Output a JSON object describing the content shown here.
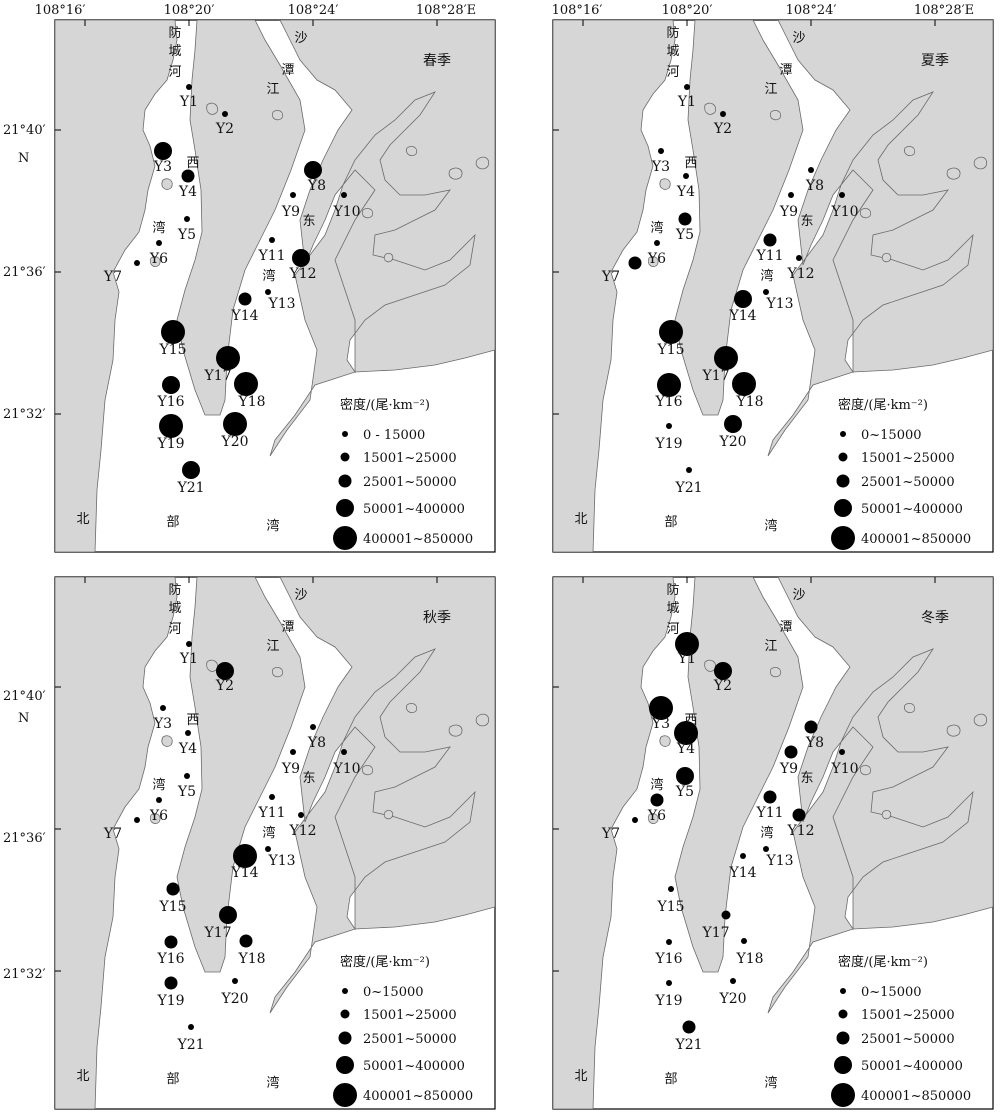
{
  "axes": {
    "top_ticks": [
      "108°16′",
      "108°20′",
      "108°24′",
      "108°28′E"
    ],
    "left_ticks": [
      "21°40′",
      "21°36′",
      "21°32′"
    ],
    "north_label": "N"
  },
  "geo_labels": {
    "fangcheng_river": [
      "防",
      "城",
      "河"
    ],
    "shatan_river": [
      "沙",
      "潭",
      "江"
    ],
    "west_bay": [
      "西",
      "湾"
    ],
    "east_bay": [
      "东",
      "湾"
    ],
    "beibu_gulf": [
      "北",
      "部",
      "湾"
    ]
  },
  "legend": {
    "title": "密度/(尾·km⁻²)",
    "classes_spring": [
      "0 - 15000",
      "15001~25000",
      "25001~50000",
      "50001~400000",
      "400001~850000"
    ],
    "classes_other": [
      "0~15000",
      "15001~25000",
      "25001~50000",
      "50001~400000",
      "400001~850000"
    ]
  },
  "stations": [
    "Y1",
    "Y2",
    "Y3",
    "Y4",
    "Y5",
    "Y6",
    "Y7",
    "Y8",
    "Y9",
    "Y10",
    "Y11",
    "Y12",
    "Y13",
    "Y14",
    "Y15",
    "Y16",
    "Y17",
    "Y18",
    "Y19",
    "Y20",
    "Y21"
  ],
  "chart_data": {
    "type": "bubble-map",
    "unit": "尾·km⁻²",
    "density_classes": [
      "0~15000",
      "15001~25000",
      "25001~50000",
      "50001~400000",
      "400001~850000"
    ],
    "panels": [
      {
        "season": "春季",
        "class_index": [
          1,
          1,
          4,
          3,
          1,
          1,
          1,
          4,
          1,
          1,
          1,
          4,
          1,
          3,
          5,
          4,
          5,
          5,
          5,
          5,
          4
        ]
      },
      {
        "season": "夏季",
        "class_index": [
          1,
          1,
          1,
          1,
          3,
          1,
          3,
          1,
          1,
          1,
          3,
          1,
          1,
          4,
          5,
          5,
          5,
          5,
          1,
          4,
          1
        ]
      },
      {
        "season": "秋季",
        "class_index": [
          1,
          4,
          1,
          1,
          1,
          1,
          1,
          1,
          1,
          1,
          1,
          1,
          1,
          5,
          3,
          3,
          4,
          3,
          3,
          1,
          1
        ]
      },
      {
        "season": "冬季",
        "class_index": [
          5,
          4,
          5,
          5,
          4,
          3,
          1,
          3,
          3,
          1,
          3,
          3,
          1,
          1,
          1,
          1,
          2,
          1,
          1,
          1,
          3
        ]
      }
    ]
  }
}
